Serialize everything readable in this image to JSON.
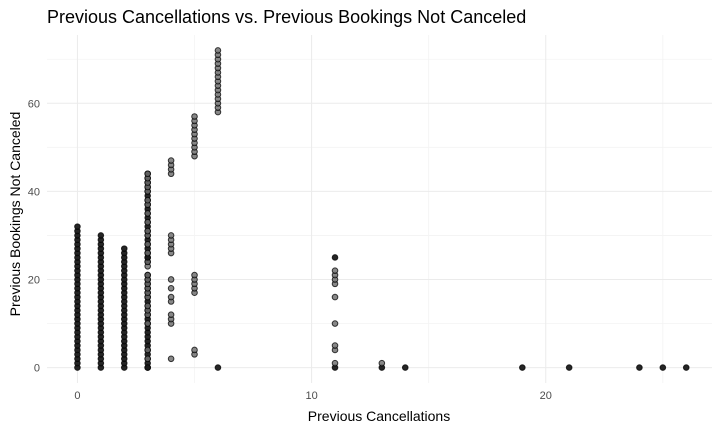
{
  "chart_data": {
    "type": "scatter",
    "title": "Previous Cancellations vs. Previous Bookings Not Canceled",
    "xlabel": "Previous Cancellations",
    "ylabel": "Previous Bookings Not Canceled",
    "xlim": [
      -1.3,
      27.1
    ],
    "ylim": [
      -3.5,
      75.5
    ],
    "x_ticks": [
      0,
      10,
      20
    ],
    "x_tick_labels": [
      "0",
      "10",
      "20"
    ],
    "x_minor_ticks": [
      5,
      15,
      25
    ],
    "y_ticks": [
      0,
      20,
      40,
      60
    ],
    "y_tick_labels": [
      "0",
      "20",
      "40",
      "60"
    ],
    "y_minor_ticks": [
      10,
      30,
      50,
      70
    ],
    "grid": true,
    "legend": "none",
    "colors": {
      "point_fill": "#6e6e6e",
      "point_dense_fill": "#1a1a1a",
      "point_stroke": "#000000",
      "grid_major": "#ebebeb",
      "grid_minor": "#f3f3f3",
      "tick_text": "#4d4d4d"
    },
    "series": [
      {
        "columns": [
          {
            "x": 0,
            "y_min": 0,
            "y_max": 32
          },
          {
            "x": 1,
            "y_min": 0,
            "y_max": 30
          },
          {
            "x": 2,
            "y_min": 0,
            "y_max": 27
          },
          {
            "x": 3,
            "y_min": 0,
            "y_max": 21
          },
          {
            "x": 3,
            "y_min": 24,
            "y_max": 44
          }
        ],
        "points": [
          [
            3,
            0
          ],
          [
            3,
            2
          ],
          [
            3,
            4
          ],
          [
            3,
            10
          ],
          [
            3,
            12
          ],
          [
            3,
            13
          ],
          [
            3,
            14
          ],
          [
            3,
            16
          ],
          [
            3,
            17
          ],
          [
            3,
            18
          ],
          [
            3,
            19
          ],
          [
            3,
            20
          ],
          [
            3,
            21
          ],
          [
            3,
            23
          ],
          [
            3,
            24
          ],
          [
            3,
            25
          ],
          [
            3,
            26
          ],
          [
            3,
            28
          ],
          [
            3,
            30
          ],
          [
            3,
            31
          ],
          [
            3,
            33
          ],
          [
            3,
            35
          ],
          [
            3,
            37
          ],
          [
            3,
            38
          ],
          [
            3,
            40
          ],
          [
            3,
            41
          ],
          [
            3,
            42
          ],
          [
            3,
            43
          ],
          [
            3,
            44
          ],
          [
            4,
            2
          ],
          [
            4,
            10
          ],
          [
            4,
            11
          ],
          [
            4,
            12
          ],
          [
            4,
            15
          ],
          [
            4,
            16
          ],
          [
            4,
            18
          ],
          [
            4,
            20
          ],
          [
            4,
            26
          ],
          [
            4,
            27
          ],
          [
            4,
            28
          ],
          [
            4,
            29
          ],
          [
            4,
            30
          ],
          [
            4,
            44
          ],
          [
            4,
            45
          ],
          [
            4,
            46
          ],
          [
            4,
            47
          ],
          [
            5,
            3
          ],
          [
            5,
            4
          ],
          [
            5,
            17
          ],
          [
            5,
            18
          ],
          [
            5,
            19
          ],
          [
            5,
            20
          ],
          [
            5,
            21
          ],
          [
            5,
            48
          ],
          [
            5,
            49
          ],
          [
            5,
            50
          ],
          [
            5,
            51
          ],
          [
            5,
            52
          ],
          [
            5,
            53
          ],
          [
            5,
            54
          ],
          [
            5,
            55
          ],
          [
            5,
            56
          ],
          [
            5,
            57
          ],
          [
            6,
            0
          ],
          [
            6,
            58
          ],
          [
            6,
            59
          ],
          [
            6,
            60
          ],
          [
            6,
            61
          ],
          [
            6,
            62
          ],
          [
            6,
            63
          ],
          [
            6,
            64
          ],
          [
            6,
            65
          ],
          [
            6,
            66
          ],
          [
            6,
            67
          ],
          [
            6,
            68
          ],
          [
            6,
            69
          ],
          [
            6,
            70
          ],
          [
            6,
            71
          ],
          [
            6,
            72
          ],
          [
            11,
            0
          ],
          [
            11,
            1
          ],
          [
            11,
            4
          ],
          [
            11,
            5
          ],
          [
            11,
            10
          ],
          [
            11,
            16
          ],
          [
            11,
            19
          ],
          [
            11,
            20
          ],
          [
            11,
            21
          ],
          [
            11,
            22
          ],
          [
            11,
            25
          ],
          [
            13,
            0
          ],
          [
            13,
            1
          ],
          [
            14,
            0
          ],
          [
            19,
            0
          ],
          [
            21,
            0
          ],
          [
            24,
            0
          ],
          [
            25,
            0
          ],
          [
            26,
            0
          ]
        ]
      }
    ]
  }
}
